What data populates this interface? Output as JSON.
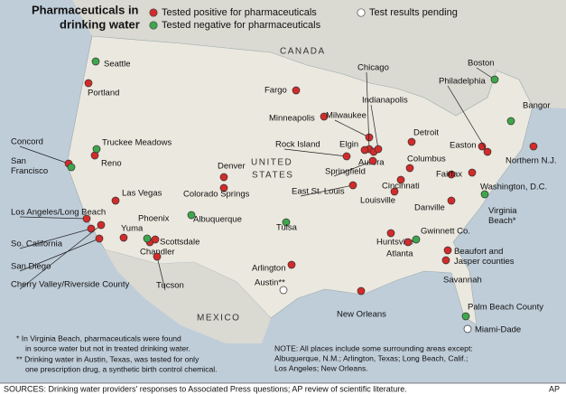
{
  "title": [
    "Pharmaceuticals in",
    "drinking water"
  ],
  "legend": [
    {
      "label": "Tested positive for pharmaceuticals",
      "color": "#d22b2b",
      "places": [
        {
          "label": "Portland"
        },
        {
          "label": "Concord"
        },
        {
          "label": "Reno"
        },
        {
          "label": "Las Vegas"
        },
        {
          "label": "Los Angeles/Long Beach"
        },
        {
          "label": "So. California"
        },
        {
          "label": "San Diego"
        },
        {
          "label": "Cherry Valley/Riverside County"
        },
        {
          "label": "Yuma"
        },
        {
          "label": "Chandler"
        },
        {
          "label": "Scottsdale"
        },
        {
          "label": "Tucson"
        },
        {
          "label": "Denver"
        },
        {
          "label": "Colorado Springs"
        },
        {
          "label": "Fargo"
        },
        {
          "label": "Minneapolis"
        },
        {
          "label": "Rock Island"
        },
        {
          "label": "Milwaukee"
        },
        {
          "label": "Chicago"
        },
        {
          "label": "Elgin"
        },
        {
          "label": "Aurora"
        },
        {
          "label": "Indianapolis"
        },
        {
          "label": "Springfield"
        },
        {
          "label": "East St. Louis"
        },
        {
          "label": "Louisville"
        },
        {
          "label": "Cincinnati"
        },
        {
          "label": "Columbus"
        },
        {
          "label": "Detroit"
        },
        {
          "label": "Danville"
        },
        {
          "label": "Fairfax"
        },
        {
          "label": "Washington, D.C."
        },
        {
          "label": "Easton"
        },
        {
          "label": "Philadelphia"
        },
        {
          "label": "Northern N.J."
        },
        {
          "label": "Arlington"
        },
        {
          "label": "New Orleans"
        },
        {
          "label": "Huntsville"
        },
        {
          "label": "Atlanta"
        },
        {
          "label": [
            "Beaufort and",
            "Jasper counties"
          ]
        },
        {
          "label": "Savannah"
        }
      ]
    },
    {
      "label": "Tested negative for pharmaceuticals",
      "color": "#3fa64c",
      "places": [
        {
          "label": "Seattle"
        },
        {
          "label": "Truckee Meadows"
        },
        {
          "label": [
            "San",
            "Francisco"
          ]
        },
        {
          "label": "Phoenix"
        },
        {
          "label": "Albuquerque"
        },
        {
          "label": "Tulsa"
        },
        {
          "label": "Gwinnett Co."
        },
        {
          "label": "Boston"
        },
        {
          "label": "Bangor"
        },
        {
          "label": [
            "Virginia",
            "Beach*"
          ]
        },
        {
          "label": "Palm Beach County"
        }
      ]
    },
    {
      "label": "Test results pending",
      "color": "#ffffff",
      "places": [
        {
          "label": "Austin**"
        },
        {
          "label": "Miami-Dade"
        }
      ]
    }
  ],
  "regions": {
    "canada": "CANADA",
    "us": [
      "UNITED",
      "STATES"
    ],
    "mexico": "MEXICO"
  },
  "footnotes": [
    "* In Virginia Beach, pharmaceuticals were found",
    "in source water but not in treated drinking water.",
    "** Drinking water in Austin, Texas, was tested for only",
    "one prescription drug, a synthetic birth control chemical."
  ],
  "note": [
    "NOTE: All places include some surrounding areas except:",
    "Albuquerque, N.M.; Arlington, Texas; Long Beach, Calif.;",
    "Los Angeles; New Orleans."
  ],
  "sources": "SOURCES: Drinking water providers' responses to Associated Press questions; AP review of scientific literature.",
  "credit": "AP"
}
